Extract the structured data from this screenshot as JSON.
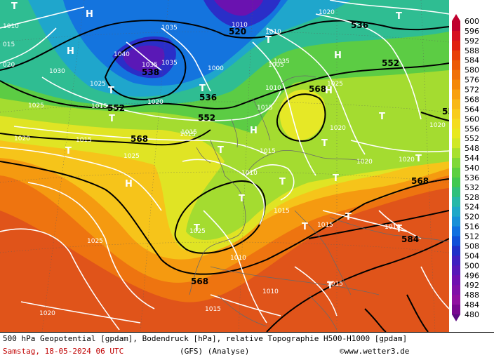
{
  "footer": {
    "description": "500 hPa Geopotential [gpdam], Bodendruck [hPa], relative Topographie H500-H1000 [gpdam]",
    "date": "Samstag, 18-05-2024  06 UTC",
    "model": "(GFS)  (Analyse)",
    "copyright": "©www.wetter3.de"
  },
  "legend": {
    "levels": [
      "600",
      "596",
      "592",
      "588",
      "584",
      "580",
      "576",
      "572",
      "568",
      "564",
      "560",
      "556",
      "552",
      "548",
      "544",
      "540",
      "536",
      "532",
      "528",
      "524",
      "520",
      "516",
      "512",
      "508",
      "504",
      "500",
      "496",
      "492",
      "488",
      "484",
      "480"
    ],
    "colors": [
      "#c0002e",
      "#d61020",
      "#e02010",
      "#e84008",
      "#ec5a06",
      "#f07008",
      "#f48808",
      "#f8a010",
      "#f8b818",
      "#f8cc1c",
      "#f4dc20",
      "#e8e820",
      "#d0e828",
      "#a8e030",
      "#80d838",
      "#5cd040",
      "#40c850",
      "#30c07c",
      "#28b8a8",
      "#20a8c8",
      "#1890d8",
      "#1070e0",
      "#1050d8",
      "#2030c8",
      "#4020c0",
      "#5818b8",
      "#7010b0",
      "#8010a8",
      "#9010a0",
      "#780890"
    ]
  },
  "map": {
    "geopotential_labels": [
      {
        "text": "520"
      },
      {
        "text": "536"
      },
      {
        "text": "536"
      },
      {
        "text": "538"
      },
      {
        "text": "552"
      },
      {
        "text": "552"
      },
      {
        "text": "552"
      },
      {
        "text": "568"
      },
      {
        "text": "568"
      },
      {
        "text": "568"
      },
      {
        "text": "568"
      },
      {
        "text": "584"
      },
      {
        "text": "55"
      }
    ],
    "pressure_labels": [
      {
        "text": "1010"
      },
      {
        "text": "015"
      },
      {
        "text": "020"
      },
      {
        "text": "1035"
      },
      {
        "text": "1040"
      },
      {
        "text": "1035"
      },
      {
        "text": "1035"
      },
      {
        "text": "1030"
      },
      {
        "text": "1025"
      },
      {
        "text": "1020"
      },
      {
        "text": "1015"
      },
      {
        "text": "1025"
      },
      {
        "text": "1020"
      },
      {
        "text": "1015"
      },
      {
        "text": "1010"
      },
      {
        "text": "1020"
      },
      {
        "text": "1010"
      },
      {
        "text": "1005"
      },
      {
        "text": "1000"
      },
      {
        "text": "1020"
      },
      {
        "text": "1025"
      },
      {
        "text": "1015"
      },
      {
        "text": "1020"
      },
      {
        "text": "1015"
      },
      {
        "text": "1025"
      },
      {
        "text": "1010"
      },
      {
        "text": "1015"
      },
      {
        "text": "1015"
      },
      {
        "text": "1020"
      },
      {
        "text": "1025"
      },
      {
        "text": "1010"
      },
      {
        "text": "1015"
      },
      {
        "text": "1010"
      },
      {
        "text": "1010"
      },
      {
        "text": "1015"
      },
      {
        "text": "1020"
      },
      {
        "text": "1015"
      },
      {
        "text": "1010"
      },
      {
        "text": "1020"
      },
      {
        "text": "1015"
      },
      {
        "text": "1025"
      },
      {
        "text": "1035"
      }
    ],
    "highs": [
      "H",
      "H",
      "H",
      "H",
      "H",
      "H"
    ],
    "lows": [
      "T",
      "T",
      "T",
      "T",
      "T",
      "T",
      "T",
      "T",
      "T",
      "T",
      "T",
      "T",
      "T",
      "T",
      "T",
      "T",
      "T",
      "T",
      "T"
    ]
  }
}
